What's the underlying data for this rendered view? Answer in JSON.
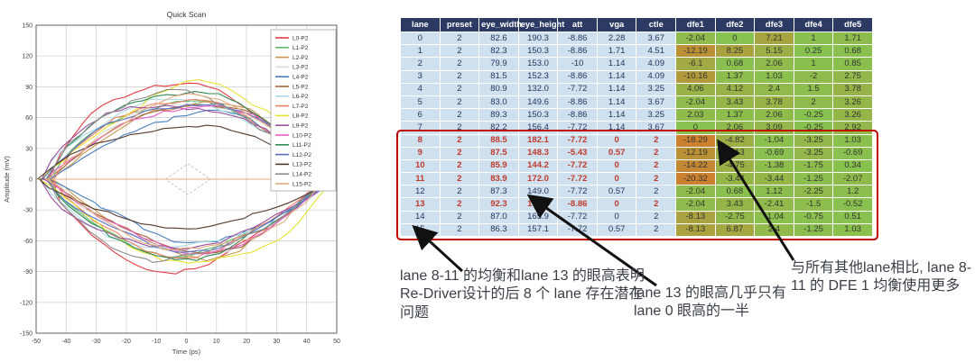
{
  "chart_data": [
    {
      "type": "line",
      "subtype": "eye-diagram",
      "title": "Quick Scan",
      "xlabel": "Time (ps)",
      "ylabel": "Amplitude (mV)",
      "xlim": [
        -50,
        50
      ],
      "ylim": [
        -150,
        150
      ],
      "xticks": [
        -50,
        -40,
        -30,
        -20,
        -10,
        0,
        10,
        20,
        30,
        40,
        50
      ],
      "yticks": [
        -150,
        -120,
        -90,
        -60,
        -30,
        0,
        30,
        60,
        90,
        120,
        150
      ],
      "grid": true,
      "legend_position": "upper right",
      "mask_diamond": [
        [
          -7,
          0
        ],
        [
          0.5,
          15
        ],
        [
          8,
          0
        ],
        [
          0.5,
          -15
        ]
      ],
      "series": [
        {
          "name": "L0-P2",
          "color": "#e53946",
          "eye_width_ps": 82.6,
          "eye_height_mv": 190.3
        },
        {
          "name": "L1-P2",
          "color": "#5dbb6a",
          "eye_width_ps": 82.3,
          "eye_height_mv": 150.3
        },
        {
          "name": "L2-P2",
          "color": "#c8964f",
          "eye_width_ps": 79.9,
          "eye_height_mv": 153.0
        },
        {
          "name": "L3-P2",
          "color": "#d9d9d9",
          "eye_width_ps": 81.5,
          "eye_height_mv": 152.3
        },
        {
          "name": "L4-P2",
          "color": "#4a7fc1",
          "eye_width_ps": 80.9,
          "eye_height_mv": 132.0
        },
        {
          "name": "L5-P2",
          "color": "#a2653c",
          "eye_width_ps": 83.0,
          "eye_height_mv": 149.6
        },
        {
          "name": "L6-P2",
          "color": "#aadde6",
          "eye_width_ps": 89.3,
          "eye_height_mv": 150.3
        },
        {
          "name": "L7-P2",
          "color": "#ec7f62",
          "eye_width_ps": 82.2,
          "eye_height_mv": 156.4
        },
        {
          "name": "L8-P2",
          "color": "#e6e22e",
          "eye_width_ps": 88.5,
          "eye_height_mv": 182.1
        },
        {
          "name": "L9-P2",
          "color": "#9c4f9c",
          "eye_width_ps": 87.5,
          "eye_height_mv": 148.3
        },
        {
          "name": "L10-P2",
          "color": "#ea5ec8",
          "eye_width_ps": 85.9,
          "eye_height_mv": 144.2
        },
        {
          "name": "L11-P2",
          "color": "#338a55",
          "eye_width_ps": 83.9,
          "eye_height_mv": 172.0
        },
        {
          "name": "L12-P2",
          "color": "#5b6fc7",
          "eye_width_ps": 87.3,
          "eye_height_mv": 149.0
        },
        {
          "name": "L13-P2",
          "color": "#53392b",
          "eye_width_ps": 92.3,
          "eye_height_mv": 103.6
        },
        {
          "name": "L14-P2",
          "color": "#8c8c8c",
          "eye_width_ps": 87.0,
          "eye_height_mv": 165.9
        },
        {
          "name": "L15-P2",
          "color": "#e2ab7f",
          "eye_width_ps": 86.3,
          "eye_height_mv": 157.1
        }
      ]
    },
    {
      "type": "table",
      "columns": [
        "lane",
        "preset",
        "eye_width",
        "eye_height",
        "att",
        "vga",
        "ctle",
        "dfe1",
        "dfe2",
        "dfe3",
        "dfe4",
        "dfe5"
      ],
      "rows": [
        [
          "0",
          "2",
          "82.6",
          "190.3",
          "-8.86",
          "2.28",
          "3.67",
          "-2.04",
          "0",
          "7.21",
          "1",
          "1.71"
        ],
        [
          "1",
          "2",
          "82.3",
          "150.3",
          "-8.86",
          "1.71",
          "4.51",
          "-12.19",
          "8.25",
          "5.15",
          "0.25",
          "0.68"
        ],
        [
          "2",
          "2",
          "79.9",
          "153.0",
          "-10",
          "1.14",
          "4.09",
          "-6.1",
          "0.68",
          "2.06",
          "1",
          "0.85"
        ],
        [
          "3",
          "2",
          "81.5",
          "152.3",
          "-8.86",
          "1.14",
          "4.09",
          "-10.16",
          "1.37",
          "1.03",
          "-2",
          "2.75"
        ],
        [
          "4",
          "2",
          "80.9",
          "132.0",
          "-7.72",
          "1.14",
          "3.25",
          "4.06",
          "4.12",
          "2.4",
          "1.5",
          "3.78"
        ],
        [
          "5",
          "2",
          "83.0",
          "149.6",
          "-8.86",
          "1.14",
          "3.67",
          "-2.04",
          "3.43",
          "3.78",
          "2",
          "3.26"
        ],
        [
          "6",
          "2",
          "89.3",
          "150.3",
          "-8.86",
          "1.14",
          "3.25",
          "2.03",
          "1.37",
          "2.06",
          "-0.25",
          "3.26"
        ],
        [
          "7",
          "2",
          "82.2",
          "156.4",
          "-7.72",
          "1.14",
          "3.67",
          "0",
          "2.06",
          "3.09",
          "-0.25",
          "2.92"
        ],
        [
          "8",
          "2",
          "88.5",
          "182.1",
          "-7.72",
          "0",
          "2",
          "-18.29",
          "-4.82",
          "-1.04",
          "-3.25",
          "1.03"
        ],
        [
          "9",
          "2",
          "87.5",
          "148.3",
          "-5.43",
          "0.57",
          "2",
          "-12.19",
          "-4.13",
          "-0.69",
          "-3.25",
          "-0.69"
        ],
        [
          "10",
          "2",
          "85.9",
          "144.2",
          "-7.72",
          "0",
          "2",
          "-14.22",
          "-4.75",
          "-1.38",
          "-1.75",
          "0.34"
        ],
        [
          "11",
          "2",
          "83.9",
          "172.0",
          "-7.72",
          "0",
          "2",
          "-20.32",
          "-3.44",
          "-3.44",
          "-1.25",
          "-2.07"
        ],
        [
          "12",
          "2",
          "87.3",
          "149.0",
          "-7.72",
          "0.57",
          "2",
          "-2.04",
          "0.68",
          "1.12",
          "-2.25",
          "1.2"
        ],
        [
          "13",
          "2",
          "92.3",
          "103.6",
          "-8.86",
          "0",
          "2",
          "-2.04",
          "3.43",
          "-2.41",
          "-1.5",
          "-0.52"
        ],
        [
          "14",
          "2",
          "87.0",
          "165.9",
          "-7.72",
          "0",
          "2",
          "-8.13",
          "-2.75",
          "-1.04",
          "-0.75",
          "0.51"
        ],
        [
          "15",
          "2",
          "86.3",
          "157.1",
          "-7.72",
          "0.57",
          "2",
          "-8.13",
          "6.87",
          "2.4",
          "-1.25",
          "1.03"
        ]
      ],
      "red_text_rows": [
        8,
        9,
        10,
        11,
        13
      ],
      "boxed_rows": [
        8,
        15
      ],
      "dfe_color_scale": {
        "near_zero": "#86c350",
        "extreme": "#cc8130",
        "abs_max": 16
      }
    }
  ],
  "annotations": {
    "note1": "lane 8-11 的均衡和lane 13 的眼高表明Re-Driver设计的后 8 个 lane 存在潜在问题",
    "note2": "lane 13 的眼高几乎只有lane 0 眼高的一半",
    "note3": "与所有其他lane相比, lane 8-11 的 DFE 1 均衡使用更多",
    "arrows": [
      {
        "tail": [
          512,
          301
        ],
        "head": [
          463,
          256
        ]
      },
      {
        "tail": [
          727,
          317
        ],
        "head": [
          591,
          221
        ]
      },
      {
        "tail": [
          879,
          289
        ],
        "head": [
          799,
          162
        ]
      }
    ]
  },
  "colors": {
    "table_header_bg": "#2c3a64",
    "table_body_bg": "#cfe0ee",
    "red_row_text": "#c0392b",
    "highlight_box": "#c00000",
    "arrow": "#111111",
    "grid": "#cccccc",
    "axis_text": "#444444"
  }
}
